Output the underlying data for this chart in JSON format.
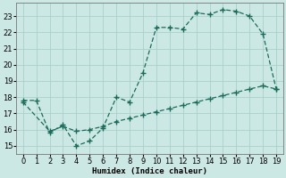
{
  "xlabel": "Humidex (Indice chaleur)",
  "bg_color": "#cce8e4",
  "grid_color": "#aacfcb",
  "line_color": "#1a6b5a",
  "xlim": [
    -0.5,
    19.5
  ],
  "ylim": [
    14.5,
    23.8
  ],
  "xticks": [
    0,
    1,
    2,
    3,
    4,
    5,
    6,
    7,
    8,
    9,
    10,
    11,
    12,
    13,
    14,
    15,
    16,
    17,
    18,
    19
  ],
  "yticks": [
    15,
    16,
    17,
    18,
    19,
    20,
    21,
    22,
    23
  ],
  "series1_x": [
    0,
    1,
    2,
    3,
    4,
    5,
    6,
    7,
    8,
    9,
    10,
    11,
    12,
    13,
    14,
    15,
    16,
    17,
    18,
    19
  ],
  "series1_y": [
    17.8,
    17.8,
    15.8,
    16.3,
    15.0,
    15.3,
    16.1,
    18.0,
    17.7,
    19.5,
    22.3,
    22.3,
    22.2,
    23.2,
    23.1,
    23.4,
    23.3,
    23.0,
    21.9,
    18.5
  ],
  "series2_x": [
    0,
    2,
    3,
    4,
    5,
    6,
    7,
    8,
    9,
    10,
    11,
    12,
    13,
    14,
    15,
    16,
    17,
    18,
    19
  ],
  "series2_y": [
    17.7,
    15.9,
    16.2,
    15.9,
    16.0,
    16.2,
    16.5,
    16.7,
    16.9,
    17.1,
    17.3,
    17.5,
    17.7,
    17.9,
    18.1,
    18.3,
    18.5,
    18.7,
    18.5
  ],
  "marker": "+",
  "markersize": 4,
  "linewidth": 0.9,
  "axis_fontsize": 6.5,
  "tick_fontsize": 6
}
